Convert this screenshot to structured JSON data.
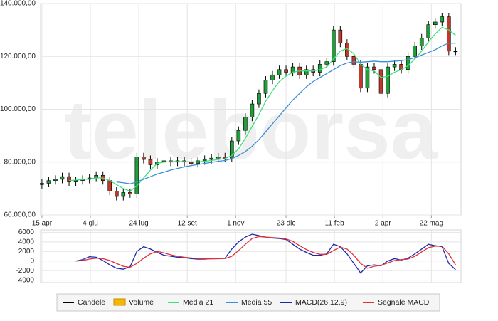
{
  "watermark": "teleborsa",
  "chart_data": [
    {
      "type": "candlestick",
      "xlim": [
        -0.2,
        61.8
      ],
      "xticks": [
        {
          "value": 0,
          "label": "15 apr"
        },
        {
          "value": 7.14,
          "label": "4 giu"
        },
        {
          "value": 14.29,
          "label": "24 lug"
        },
        {
          "value": 21.43,
          "label": "12 set"
        },
        {
          "value": 28.57,
          "label": "1 nov"
        },
        {
          "value": 36,
          "label": "23 dic"
        },
        {
          "value": 43.14,
          "label": "11 feb"
        },
        {
          "value": 50.29,
          "label": "2 apr"
        },
        {
          "value": 57.43,
          "label": "22 mag"
        }
      ],
      "ylim": [
        60000,
        140000
      ],
      "yticks": [
        {
          "value": 60000,
          "label": "60.000,00"
        },
        {
          "value": 80000,
          "label": "80.000,00"
        },
        {
          "value": 100000,
          "label": "100.000,00"
        },
        {
          "value": 120000,
          "label": "120.000,00"
        },
        {
          "value": 140000,
          "label": "140.000,00"
        }
      ],
      "grid": true,
      "volume": {
        "name": "Volume",
        "color": "#f5b800"
      },
      "series": [
        {
          "name": "Candele",
          "color": "#000000",
          "up_color": "#1f9e3a",
          "down_color": "#c0392b",
          "open": [
            71500,
            72000,
            73000,
            73500,
            74500,
            72500,
            73000,
            73500,
            74000,
            75000,
            73000,
            69000,
            67000,
            68500,
            68000,
            82000,
            81000,
            79000,
            80000,
            80500,
            80000,
            80500,
            80000,
            79500,
            80500,
            81000,
            81500,
            82000,
            81500,
            88000,
            92000,
            97000,
            102000,
            106000,
            111000,
            113000,
            115000,
            114000,
            116000,
            113000,
            115000,
            114000,
            117000,
            118000,
            130000,
            125000,
            120000,
            117000,
            108000,
            116000,
            115000,
            106000,
            116000,
            117000,
            115000,
            120000,
            124000,
            127000,
            132000,
            133000,
            135000,
            122000
          ],
          "high": [
            73500,
            74500,
            75000,
            76000,
            76000,
            74500,
            75000,
            75500,
            76500,
            76500,
            74500,
            70500,
            70000,
            70000,
            83500,
            83500,
            82500,
            81500,
            82000,
            82000,
            82000,
            82000,
            81500,
            82000,
            82500,
            83000,
            83500,
            83500,
            89500,
            93500,
            98500,
            103500,
            107500,
            112500,
            114500,
            116500,
            116500,
            117500,
            117500,
            116500,
            116500,
            118500,
            119500,
            131500,
            131500,
            126500,
            121500,
            118500,
            117500,
            117500,
            116500,
            117500,
            118500,
            118500,
            121500,
            125500,
            128500,
            133500,
            134500,
            136500,
            136500,
            123500
          ],
          "low": [
            70000,
            70500,
            71500,
            72000,
            71000,
            71000,
            71500,
            72000,
            72500,
            71500,
            67500,
            65500,
            65500,
            66500,
            66500,
            79500,
            77500,
            77500,
            78500,
            78500,
            78500,
            78500,
            78000,
            78000,
            79000,
            79500,
            80000,
            80000,
            80000,
            86500,
            90500,
            95500,
            100500,
            104500,
            109500,
            111500,
            112500,
            112500,
            111500,
            111500,
            112500,
            112500,
            115500,
            116500,
            123500,
            118500,
            115500,
            106500,
            106500,
            113500,
            104500,
            104500,
            114500,
            113500,
            113500,
            118500,
            122500,
            125500,
            130500,
            131500,
            120500,
            120500
          ],
          "close": [
            72000,
            73000,
            73500,
            74500,
            72500,
            73000,
            73500,
            74000,
            75000,
            73000,
            69000,
            67000,
            68500,
            68000,
            82000,
            81000,
            79000,
            80000,
            80500,
            80000,
            80500,
            80000,
            79500,
            80500,
            81000,
            81500,
            82000,
            81500,
            88000,
            92000,
            97000,
            102000,
            106000,
            111000,
            113000,
            115000,
            114000,
            116000,
            113000,
            115000,
            114000,
            117000,
            118000,
            130000,
            125000,
            120000,
            117000,
            108000,
            116000,
            115000,
            106000,
            116000,
            117000,
            115000,
            120000,
            124000,
            127000,
            132000,
            133000,
            135000,
            122000,
            122000
          ]
        },
        {
          "name": "Media 21",
          "color": "#3ee07a",
          "values": [
            null,
            null,
            null,
            null,
            73000,
            73200,
            73400,
            73600,
            74000,
            74000,
            73000,
            71500,
            70000,
            69000,
            71000,
            74000,
            77000,
            79500,
            80000,
            80200,
            80200,
            80200,
            80100,
            80100,
            80300,
            80600,
            81000,
            81300,
            82500,
            85000,
            89000,
            93500,
            98000,
            103000,
            107000,
            110500,
            112500,
            114000,
            114500,
            114500,
            114500,
            115000,
            116000,
            119000,
            122000,
            123000,
            121000,
            117000,
            115000,
            114500,
            112000,
            112500,
            114000,
            115000,
            116500,
            119000,
            122000,
            125500,
            128500,
            131000,
            130000,
            128000
          ]
        },
        {
          "name": "Media 55",
          "color": "#3a8fd8",
          "values": [
            null,
            null,
            null,
            null,
            null,
            null,
            null,
            null,
            null,
            null,
            null,
            72500,
            72200,
            71800,
            72500,
            73500,
            74500,
            75500,
            76200,
            77000,
            77600,
            78200,
            78700,
            79100,
            79500,
            79900,
            80300,
            80600,
            81300,
            82500,
            84000,
            86000,
            88500,
            91500,
            94500,
            97500,
            100500,
            103500,
            106000,
            108500,
            110500,
            112000,
            113500,
            115000,
            116500,
            117500,
            118000,
            117800,
            118000,
            118200,
            118000,
            118000,
            118200,
            118400,
            118800,
            119500,
            120500,
            121500,
            122500,
            124000,
            125000,
            125000
          ]
        }
      ]
    },
    {
      "type": "line",
      "xlim": [
        -0.2,
        61.8
      ],
      "ylim": [
        -4500,
        6500
      ],
      "yticks": [
        -4000,
        -2000,
        0,
        2000,
        4000,
        6000
      ],
      "grid": true,
      "series": [
        {
          "name": "MACD(26,12,9)",
          "color": "#1a2aa8",
          "values": [
            null,
            null,
            null,
            null,
            null,
            0,
            300,
            900,
            800,
            100,
            -800,
            -1500,
            -1700,
            -1200,
            2000,
            3000,
            2500,
            1800,
            1200,
            1000,
            800,
            700,
            500,
            400,
            400,
            500,
            500,
            600,
            2500,
            4000,
            5000,
            5600,
            5300,
            5000,
            4800,
            4700,
            4500,
            3500,
            2500,
            1800,
            1200,
            1200,
            1500,
            3500,
            3000,
            1500,
            -500,
            -2500,
            -1000,
            -800,
            -1000,
            0,
            500,
            200,
            600,
            1500,
            2500,
            3500,
            3200,
            3000,
            -500,
            -1800
          ]
        },
        {
          "name": "Segnale MACD",
          "color": "#e0303a",
          "values": [
            null,
            null,
            null,
            null,
            null,
            0,
            100,
            400,
            600,
            500,
            100,
            -500,
            -1100,
            -1300,
            -500,
            600,
            1500,
            2000,
            1700,
            1300,
            1000,
            800,
            650,
            500,
            450,
            450,
            480,
            520,
            1000,
            2200,
            3500,
            4700,
            5100,
            5000,
            4900,
            4800,
            4600,
            4100,
            3200,
            2400,
            1800,
            1400,
            1400,
            2200,
            2900,
            2500,
            1200,
            -500,
            -1500,
            -1100,
            -900,
            -400,
            100,
            300,
            400,
            1000,
            1900,
            2800,
            3100,
            3100,
            1500,
            -800
          ]
        }
      ]
    }
  ]
}
